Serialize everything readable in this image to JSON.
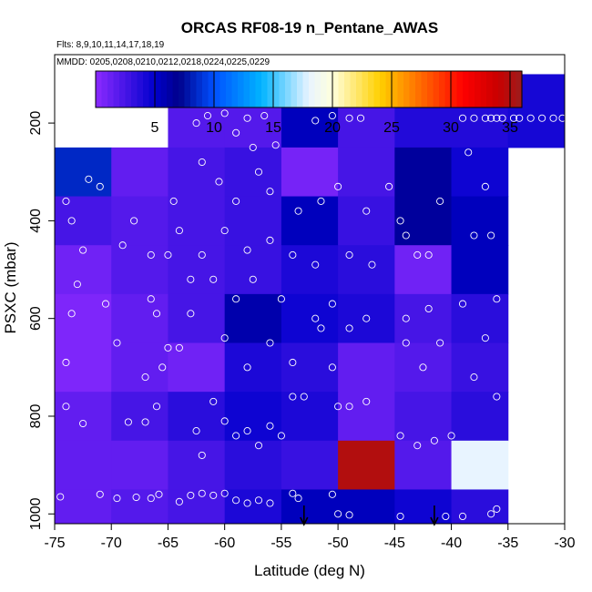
{
  "chart_data": {
    "type": "heatmap",
    "title": "ORCAS RF08-19 n_Pentane_AWAS",
    "subtitle_flights": "Flts: 8,9,10,11,14,17,18,19",
    "subtitle_dates": "MMDD: 0205,0208,0210,0212,0218,0224,0225,0229",
    "xlabel": "Latitude (deg N)",
    "ylabel": "PSXC (mbar)",
    "xlim": [
      -75,
      -30
    ],
    "ylim": [
      1020,
      60
    ],
    "x_ticks": [
      -75,
      -70,
      -65,
      -60,
      -55,
      -50,
      -45,
      -40,
      -35,
      -30
    ],
    "y_ticks": [
      200,
      400,
      600,
      800,
      1000
    ],
    "colorbar": {
      "range": [
        0,
        36
      ],
      "ticks": [
        5,
        10,
        15,
        20,
        25,
        30,
        35
      ],
      "stops": [
        {
          "v": 0,
          "c": "#8c2aff"
        },
        {
          "v": 5,
          "c": "#0000cd"
        },
        {
          "v": 7,
          "c": "#00008b"
        },
        {
          "v": 10,
          "c": "#0050ff"
        },
        {
          "v": 14,
          "c": "#00b4ff"
        },
        {
          "v": 18,
          "c": "#e8f4ff"
        },
        {
          "v": 20,
          "c": "#ffffdd"
        },
        {
          "v": 24,
          "c": "#ffd000"
        },
        {
          "v": 28,
          "c": "#ff5a00"
        },
        {
          "v": 31,
          "c": "#ff0000"
        },
        {
          "v": 34,
          "c": "#c80000"
        },
        {
          "v": 36,
          "c": "#9c1c1c"
        }
      ]
    },
    "x_bins": [
      -75,
      -70,
      -65,
      -60,
      -55,
      -50,
      -45,
      -40,
      -35,
      -30
    ],
    "p_bins": [
      100,
      250,
      350,
      450,
      550,
      650,
      750,
      850,
      950,
      1050
    ],
    "cell_values": [
      [
        null,
        null,
        2.0,
        2.0,
        5.5,
        2.5,
        3.8,
        3.8,
        4.2
      ],
      [
        8.5,
        1.5,
        2.5,
        3.0,
        0.8,
        2.5,
        6.5,
        4.5,
        null
      ],
      [
        2.5,
        2.0,
        2.5,
        3.0,
        5.5,
        3.0,
        6.5,
        5.5,
        null
      ],
      [
        1.0,
        2.0,
        2.5,
        3.0,
        4.0,
        3.5,
        1.0,
        5.5,
        null
      ],
      [
        0.5,
        1.5,
        2.5,
        6.0,
        4.5,
        4.0,
        2.5,
        3.5,
        null
      ],
      [
        0.5,
        1.5,
        1.0,
        4.0,
        3.5,
        1.5,
        2.0,
        3.0,
        null
      ],
      [
        1.5,
        2.5,
        3.5,
        4.5,
        4.0,
        1.5,
        2.5,
        3.5,
        null
      ],
      [
        1.5,
        1.5,
        2.5,
        3.5,
        3.0,
        35.0,
        2.0,
        18.0,
        null
      ],
      [
        1.5,
        2.0,
        2.5,
        4.0,
        5.5,
        5.5,
        4.5,
        3.5,
        null
      ]
    ],
    "samples": [
      {
        "x": -74.5,
        "p": 965
      },
      {
        "x": -72.5,
        "p": 815
      },
      {
        "x": -71.0,
        "p": 960
      },
      {
        "x": -69.5,
        "p": 968
      },
      {
        "x": -68.5,
        "p": 812
      },
      {
        "x": -67.8,
        "p": 966
      },
      {
        "x": -67.0,
        "p": 812
      },
      {
        "x": -66.5,
        "p": 968
      },
      {
        "x": -65.8,
        "p": 960
      },
      {
        "x": -64.0,
        "p": 975
      },
      {
        "x": -63.0,
        "p": 962
      },
      {
        "x": -62.0,
        "p": 958
      },
      {
        "x": -61.0,
        "p": 962
      },
      {
        "x": -60.0,
        "p": 958
      },
      {
        "x": -59.0,
        "p": 972
      },
      {
        "x": -58.0,
        "p": 978
      },
      {
        "x": -57.0,
        "p": 972
      },
      {
        "x": -56.0,
        "p": 978
      },
      {
        "x": -54.0,
        "p": 958
      },
      {
        "x": -53.5,
        "p": 968
      },
      {
        "x": -50.5,
        "p": 960
      },
      {
        "x": -50.0,
        "p": 1000
      },
      {
        "x": -49.0,
        "p": 1002
      },
      {
        "x": -44.5,
        "p": 1005
      },
      {
        "x": -40.5,
        "p": 1005
      },
      {
        "x": -39.0,
        "p": 1005
      },
      {
        "x": -36.5,
        "p": 1000
      },
      {
        "x": -36.0,
        "p": 990
      },
      {
        "x": -74.0,
        "p": 780
      },
      {
        "x": -74.0,
        "p": 690
      },
      {
        "x": -73.5,
        "p": 590
      },
      {
        "x": -73.0,
        "p": 530
      },
      {
        "x": -72.5,
        "p": 460
      },
      {
        "x": -73.5,
        "p": 400
      },
      {
        "x": -71.0,
        "p": 330
      },
      {
        "x": -74.0,
        "p": 360
      },
      {
        "x": -69.5,
        "p": 650
      },
      {
        "x": -70.5,
        "p": 570
      },
      {
        "x": -69.0,
        "p": 450
      },
      {
        "x": -68.0,
        "p": 400
      },
      {
        "x": -66.5,
        "p": 470
      },
      {
        "x": -67.0,
        "p": 720
      },
      {
        "x": -66.0,
        "p": 780
      },
      {
        "x": -66.0,
        "p": 590
      },
      {
        "x": -64.0,
        "p": 420
      },
      {
        "x": -64.5,
        "p": 360
      },
      {
        "x": -65.5,
        "p": 700
      },
      {
        "x": -64.0,
        "p": 660
      },
      {
        "x": -62.5,
        "p": 830
      },
      {
        "x": -62.0,
        "p": 880
      },
      {
        "x": -61.0,
        "p": 770
      },
      {
        "x": -60.0,
        "p": 810
      },
      {
        "x": -59.0,
        "p": 840
      },
      {
        "x": -58.0,
        "p": 830
      },
      {
        "x": -57.0,
        "p": 860
      },
      {
        "x": -56.0,
        "p": 820
      },
      {
        "x": -55.0,
        "p": 840
      },
      {
        "x": -54.0,
        "p": 760
      },
      {
        "x": -53.0,
        "p": 760
      },
      {
        "x": -50.0,
        "p": 780
      },
      {
        "x": -49.0,
        "p": 780
      },
      {
        "x": -47.5,
        "p": 770
      },
      {
        "x": -44.5,
        "p": 840
      },
      {
        "x": -41.5,
        "p": 850
      },
      {
        "x": -40.0,
        "p": 840
      },
      {
        "x": -38.0,
        "p": 720
      },
      {
        "x": -36.0,
        "p": 760
      },
      {
        "x": -43.0,
        "p": 860
      },
      {
        "x": -62.5,
        "p": 200
      },
      {
        "x": -61.5,
        "p": 185
      },
      {
        "x": -60.0,
        "p": 180
      },
      {
        "x": -58.0,
        "p": 190
      },
      {
        "x": -56.5,
        "p": 185
      },
      {
        "x": -59.0,
        "p": 220
      },
      {
        "x": -57.5,
        "p": 250
      },
      {
        "x": -55.5,
        "p": 245
      },
      {
        "x": -52.0,
        "p": 195
      },
      {
        "x": -50.5,
        "p": 185
      },
      {
        "x": -49.0,
        "p": 190
      },
      {
        "x": -48.0,
        "p": 190
      },
      {
        "x": -62.0,
        "p": 280
      },
      {
        "x": -60.5,
        "p": 320
      },
      {
        "x": -59.0,
        "p": 360
      },
      {
        "x": -57.0,
        "p": 300
      },
      {
        "x": -56.0,
        "p": 340
      },
      {
        "x": -53.5,
        "p": 380
      },
      {
        "x": -51.5,
        "p": 360
      },
      {
        "x": -50.0,
        "p": 330
      },
      {
        "x": -47.5,
        "p": 380
      },
      {
        "x": -45.5,
        "p": 330
      },
      {
        "x": -44.5,
        "p": 400
      },
      {
        "x": -41.0,
        "p": 360
      },
      {
        "x": -38.5,
        "p": 260
      },
      {
        "x": -37.0,
        "p": 330
      },
      {
        "x": -38.0,
        "p": 430
      },
      {
        "x": -36.5,
        "p": 430
      },
      {
        "x": -60.0,
        "p": 420
      },
      {
        "x": -58.0,
        "p": 460
      },
      {
        "x": -56.0,
        "p": 440
      },
      {
        "x": -54.0,
        "p": 470
      },
      {
        "x": -52.0,
        "p": 490
      },
      {
        "x": -49.0,
        "p": 470
      },
      {
        "x": -47.0,
        "p": 490
      },
      {
        "x": -44.0,
        "p": 430
      },
      {
        "x": -43.0,
        "p": 470
      },
      {
        "x": -42.0,
        "p": 470
      },
      {
        "x": -61.0,
        "p": 520
      },
      {
        "x": -59.0,
        "p": 560
      },
      {
        "x": -57.5,
        "p": 520
      },
      {
        "x": -55.0,
        "p": 560
      },
      {
        "x": -52.0,
        "p": 600
      },
      {
        "x": -50.5,
        "p": 570
      },
      {
        "x": -47.5,
        "p": 600
      },
      {
        "x": -44.0,
        "p": 600
      },
      {
        "x": -42.0,
        "p": 580
      },
      {
        "x": -39.0,
        "p": 570
      },
      {
        "x": -36.0,
        "p": 560
      },
      {
        "x": -37.0,
        "p": 640
      },
      {
        "x": -60.0,
        "p": 640
      },
      {
        "x": -58.0,
        "p": 700
      },
      {
        "x": -56.0,
        "p": 650
      },
      {
        "x": -54.0,
        "p": 690
      },
      {
        "x": -51.5,
        "p": 620
      },
      {
        "x": -50.5,
        "p": 700
      },
      {
        "x": -49.0,
        "p": 620
      },
      {
        "x": -44.0,
        "p": 650
      },
      {
        "x": -42.5,
        "p": 700
      },
      {
        "x": -41.0,
        "p": 650
      },
      {
        "x": -35.5,
        "p": 190
      },
      {
        "x": -34.5,
        "p": 190
      },
      {
        "x": -34.0,
        "p": 190
      },
      {
        "x": -33.0,
        "p": 190
      },
      {
        "x": -32.0,
        "p": 190
      },
      {
        "x": -31.0,
        "p": 190
      },
      {
        "x": -30.2,
        "p": 190
      },
      {
        "x": -39.0,
        "p": 190
      },
      {
        "x": -38.0,
        "p": 190
      },
      {
        "x": -37.0,
        "p": 190
      },
      {
        "x": -36.5,
        "p": 190
      },
      {
        "x": -36.0,
        "p": 190
      },
      {
        "x": -68.5,
        "p": 220
      },
      {
        "x": -72.0,
        "p": 315
      },
      {
        "x": -65.0,
        "p": 660
      },
      {
        "x": -66.5,
        "p": 560
      },
      {
        "x": -63.0,
        "p": 590
      },
      {
        "x": -62.0,
        "p": 470
      },
      {
        "x": -63.0,
        "p": 520
      },
      {
        "x": -65.0,
        "p": 470
      }
    ],
    "arrows": [
      -53.0,
      -41.5
    ]
  }
}
